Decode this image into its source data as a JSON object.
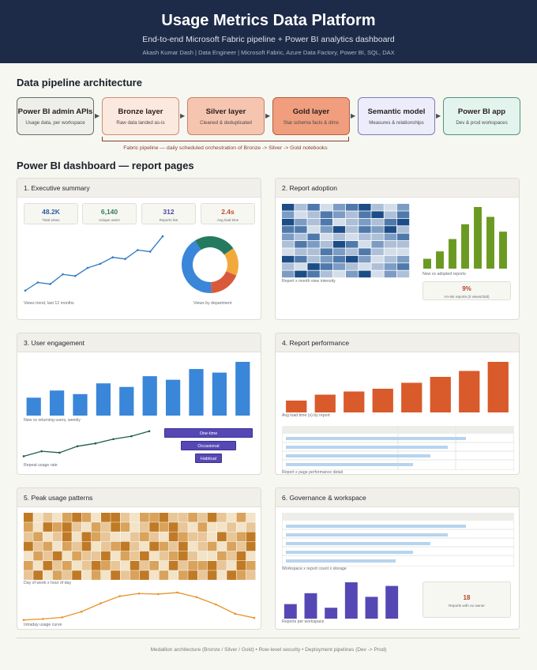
{
  "header": {
    "title": "Usage Metrics Data Platform",
    "subtitle": "End-to-end Microsoft Fabric pipeline + Power BI analytics dashboard",
    "meta": "Akash Kumar Dash  |  Data Engineer  |  Microsoft Fabric, Azure Data Factory, Power BI, SQL, DAX"
  },
  "pipeline": {
    "title": "Data pipeline architecture",
    "stages": [
      {
        "title": "Power BI admin APIs",
        "desc": "Usage data, per workspace",
        "bg": "#eeeeea",
        "border": "#6d6f69"
      },
      {
        "title": "Bronze layer",
        "desc": "Raw data landed as-is",
        "bg": "#fbe8df",
        "border": "#cf8e74"
      },
      {
        "title": "Silver layer",
        "desc": "Cleaned & deduplicated",
        "bg": "#f6c5b0",
        "border": "#c78268"
      },
      {
        "title": "Gold layer",
        "desc": "Star schema facts & dims",
        "bg": "#f09e7e",
        "border": "#b55d40"
      },
      {
        "title": "Semantic model",
        "desc": "Measures & relationships",
        "bg": "#ececfb",
        "border": "#7c79bf"
      },
      {
        "title": "Power BI app",
        "desc": "Dev & prod workspaces",
        "bg": "#e3f4ee",
        "border": "#4f9579"
      }
    ],
    "arrow": "▶",
    "orchestration": "Fabric pipeline  —  daily scheduled orchestration of Bronze -> Silver -> Gold notebooks"
  },
  "dashboard": {
    "title": "Power BI dashboard  —  report pages",
    "panels": {
      "exec": {
        "title": "1. Executive summary",
        "kpis": [
          {
            "value": "48.2K",
            "label": "Total views",
            "color": "#2b5f9e"
          },
          {
            "value": "6,140",
            "label": "Unique users",
            "color": "#2d7a5b"
          },
          {
            "value": "312",
            "label": "Reports live",
            "color": "#4b48a8"
          },
          {
            "value": "2.4s",
            "label": "Avg load time",
            "color": "#c0502b"
          }
        ],
        "trend_caption": "Views trend, last 12 months",
        "donut_caption": "Views by department"
      },
      "adoption": {
        "title": "2. Report adoption",
        "heatmap_caption": "Report x month view intensity",
        "bars_caption": "New vs adopted reports",
        "stat_value": "9%",
        "stat_label": "At-risk reports (0 views/30d)"
      },
      "engagement": {
        "title": "3. User engagement",
        "bars_caption": "New vs returning users, weekly",
        "line_caption": "Repeat usage rate",
        "funnel": [
          "One-time",
          "Occasional",
          "Habitual"
        ]
      },
      "performance": {
        "title": "4. Report performance",
        "bars_caption": "Avg load time (s) by report",
        "table_caption": "Report x page performance detail"
      },
      "peak": {
        "title": "5. Peak usage patterns",
        "heatmap_caption": "Day of week x hour of day",
        "curve_caption": "Intraday usage curve"
      },
      "governance": {
        "title": "6. Governance & workspace",
        "table_caption": "Workspace x report count x storage",
        "bars_caption": "Reports per workspace",
        "stat_value": "18",
        "stat_label": "Reports with no owner"
      }
    }
  },
  "chart_data": [
    {
      "id": "views-trend",
      "type": "line",
      "values": [
        2,
        4,
        3.6,
        6,
        5.6,
        7.6,
        8.6,
        10.2,
        9.8,
        12,
        11.6,
        15.4
      ],
      "color": "#2b78c4"
    },
    {
      "id": "views-by-department",
      "type": "pie",
      "values": [
        42,
        24,
        16,
        18
      ],
      "colors": [
        "#3a86d9",
        "#247a5e",
        "#f2a93b",
        "#d95a3a"
      ]
    },
    {
      "id": "report-adoption-heatmap",
      "type": "heatmap",
      "rows": 10,
      "cols": 10,
      "values": [
        [
          5,
          2,
          4,
          1,
          3,
          4,
          5,
          2,
          1,
          3
        ],
        [
          3,
          1,
          2,
          4,
          3,
          2,
          4,
          5,
          2,
          4
        ],
        [
          5,
          3,
          2,
          4,
          1,
          2,
          3,
          2,
          4,
          5
        ],
        [
          4,
          4,
          1,
          3,
          5,
          2,
          4,
          3,
          5,
          2
        ],
        [
          3,
          2,
          4,
          1,
          2,
          1,
          2,
          2,
          3,
          4
        ],
        [
          2,
          4,
          3,
          2,
          5,
          4,
          1,
          3,
          2,
          2
        ],
        [
          1,
          2,
          2,
          4,
          3,
          2,
          4,
          2,
          1,
          1
        ],
        [
          5,
          4,
          2,
          3,
          4,
          5,
          3,
          1,
          2,
          3
        ],
        [
          2,
          1,
          5,
          4,
          3,
          2,
          1,
          2,
          3,
          4
        ],
        [
          3,
          5,
          4,
          2,
          1,
          3,
          5,
          1,
          3,
          2
        ]
      ],
      "colors": [
        "#d4deea",
        "#adc0d8",
        "#7c9cc4",
        "#4f79ab",
        "#1c4d86"
      ]
    },
    {
      "id": "new-vs-adopted-reports",
      "type": "bar",
      "values": [
        2,
        3.5,
        6,
        9,
        12.5,
        10.5,
        7.5
      ],
      "color": "#6b9a22"
    },
    {
      "id": "new-vs-returning-users",
      "type": "bar",
      "values": [
        2.5,
        3.5,
        3,
        4.5,
        4,
        5.5,
        5,
        6.5,
        6,
        7.5
      ],
      "color": "#3a86d9"
    },
    {
      "id": "repeat-usage-rate",
      "type": "line",
      "values": [
        2.5,
        3.2,
        3.0,
        3.9,
        4.3,
        4.9,
        5.3,
        6.0
      ],
      "color": "#1f5e4d"
    },
    {
      "id": "avg-load-time",
      "type": "bar",
      "values": [
        3,
        4.5,
        5.3,
        6,
        7.5,
        9,
        10.5,
        12.8
      ],
      "color": "#d95a2b"
    },
    {
      "id": "peak-usage-heatmap",
      "type": "heatmap",
      "rows": 7,
      "cols": 24,
      "values": [
        [
          4,
          1,
          2,
          1,
          3,
          4,
          3,
          1,
          4,
          4,
          2,
          1,
          3,
          3,
          4,
          2,
          2,
          3,
          2,
          4,
          2,
          1,
          3,
          1
        ],
        [
          3,
          1,
          4,
          3,
          4,
          2,
          1,
          3,
          2,
          4,
          3,
          1,
          2,
          4,
          3,
          4,
          2,
          1,
          3,
          1,
          1,
          2,
          1,
          2
        ],
        [
          2,
          3,
          1,
          2,
          4,
          1,
          4,
          3,
          2,
          1,
          1,
          2,
          3,
          2,
          1,
          4,
          3,
          2,
          2,
          1,
          4,
          2,
          3,
          4
        ],
        [
          4,
          2,
          3,
          1,
          3,
          2,
          4,
          1,
          2,
          3,
          4,
          2,
          1,
          4,
          3,
          2,
          4,
          1,
          2,
          3,
          1,
          3,
          2,
          4
        ],
        [
          1,
          3,
          2,
          4,
          1,
          3,
          2,
          2,
          4,
          1,
          3,
          2,
          4,
          1,
          2,
          3,
          4,
          2,
          1,
          1,
          3,
          2,
          4,
          1
        ],
        [
          3,
          1,
          4,
          2,
          3,
          1,
          2,
          4,
          3,
          2,
          1,
          4,
          2,
          3,
          1,
          4,
          2,
          3,
          3,
          4,
          2,
          1,
          4,
          3
        ],
        [
          2,
          4,
          1,
          3,
          2,
          4,
          1,
          3,
          1,
          4,
          2,
          3,
          4,
          1,
          3,
          1,
          3,
          4,
          2,
          4,
          1,
          4,
          3,
          2
        ]
      ],
      "colors": [
        "#f3e3c7",
        "#e8c698",
        "#d9a35c",
        "#c07a25"
      ]
    },
    {
      "id": "intraday-usage-curve",
      "type": "line",
      "values": [
        1.0,
        1.2,
        1.5,
        2.6,
        4.2,
        5.6,
        6.1,
        6.0,
        6.3,
        5.4,
        4.0,
        2.2,
        1.4
      ],
      "color": "#e8942e"
    },
    {
      "id": "reports-per-workspace",
      "type": "bar",
      "values": [
        4,
        7,
        3,
        10,
        6,
        9
      ],
      "color": "#5648b4"
    }
  ],
  "footer": "Medallion architecture (Bronze / Silver / Gold)  •  Row-level security  •  Deployment pipelines (Dev -> Prod)"
}
